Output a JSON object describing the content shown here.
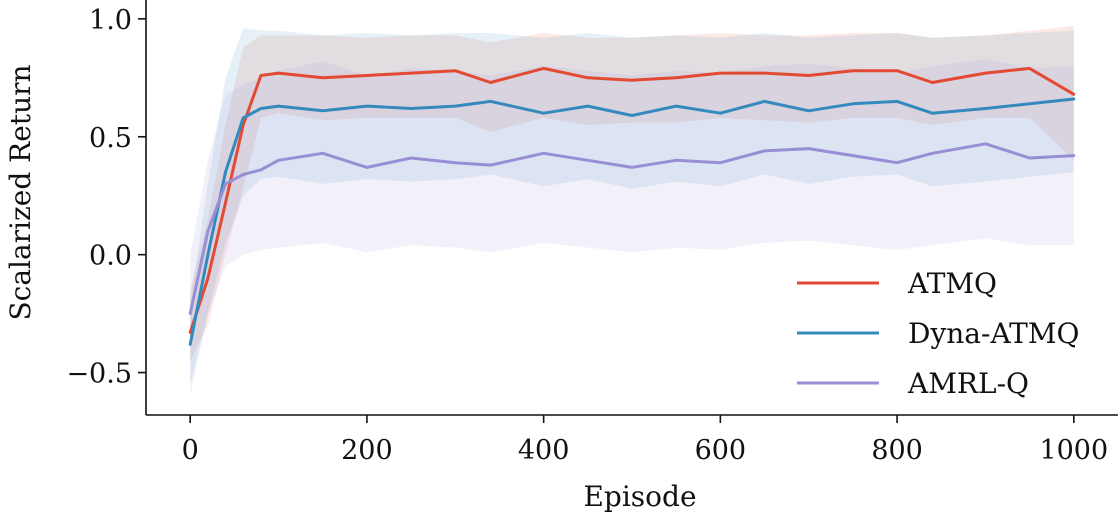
{
  "chart_data": {
    "type": "line",
    "xlabel": "Episode",
    "ylabel": "Scalarized Return",
    "xlim": [
      -50,
      1050
    ],
    "ylim": [
      -0.68,
      1.08
    ],
    "xticks": [
      0,
      200,
      400,
      600,
      800,
      1000
    ],
    "xtick_labels": [
      "0",
      "200",
      "400",
      "600",
      "800",
      "1000"
    ],
    "yticks": [
      -0.5,
      0.0,
      0.5,
      1.0
    ],
    "ytick_labels": [
      "−0.5",
      "0.0",
      "0.5",
      "1.0"
    ],
    "grid": false,
    "legend_position": "bottom-right",
    "series": [
      {
        "name": "ATMQ",
        "color": "#e24a33",
        "x": [
          0,
          20,
          40,
          60,
          80,
          100,
          150,
          200,
          250,
          300,
          340,
          400,
          450,
          500,
          550,
          600,
          650,
          700,
          750,
          800,
          840,
          900,
          950,
          1000
        ],
        "y": [
          -0.33,
          -0.1,
          0.22,
          0.55,
          0.76,
          0.77,
          0.75,
          0.76,
          0.77,
          0.78,
          0.73,
          0.79,
          0.75,
          0.74,
          0.75,
          0.77,
          0.77,
          0.76,
          0.78,
          0.78,
          0.73,
          0.77,
          0.79,
          0.68
        ],
        "band_upper": [
          -0.15,
          0.15,
          0.55,
          0.88,
          0.93,
          0.93,
          0.93,
          0.92,
          0.93,
          0.93,
          0.9,
          0.94,
          0.92,
          0.92,
          0.93,
          0.94,
          0.93,
          0.93,
          0.94,
          0.94,
          0.92,
          0.93,
          0.95,
          0.97
        ],
        "band_lower": [
          -0.45,
          -0.3,
          0.0,
          0.28,
          0.58,
          0.6,
          0.57,
          0.58,
          0.58,
          0.58,
          0.52,
          0.58,
          0.55,
          0.56,
          0.56,
          0.58,
          0.57,
          0.56,
          0.58,
          0.58,
          0.55,
          0.58,
          0.58,
          0.4
        ]
      },
      {
        "name": "Dyna-ATMQ",
        "color": "#348abd",
        "x": [
          0,
          20,
          40,
          60,
          80,
          100,
          150,
          200,
          250,
          300,
          340,
          400,
          450,
          500,
          550,
          600,
          650,
          700,
          750,
          800,
          840,
          900,
          950,
          1000
        ],
        "y": [
          -0.38,
          0.0,
          0.35,
          0.58,
          0.62,
          0.63,
          0.61,
          0.63,
          0.62,
          0.63,
          0.65,
          0.6,
          0.63,
          0.59,
          0.63,
          0.6,
          0.65,
          0.61,
          0.64,
          0.65,
          0.6,
          0.62,
          0.64,
          0.66
        ],
        "band_upper": [
          -0.2,
          0.3,
          0.75,
          0.96,
          0.95,
          0.95,
          0.93,
          0.94,
          0.93,
          0.94,
          0.94,
          0.92,
          0.94,
          0.92,
          0.93,
          0.92,
          0.94,
          0.92,
          0.93,
          0.94,
          0.92,
          0.93,
          0.94,
          0.95
        ],
        "band_lower": [
          -0.55,
          -0.25,
          0.05,
          0.25,
          0.32,
          0.33,
          0.3,
          0.32,
          0.31,
          0.32,
          0.34,
          0.29,
          0.32,
          0.28,
          0.31,
          0.29,
          0.34,
          0.3,
          0.33,
          0.34,
          0.29,
          0.31,
          0.33,
          0.35
        ]
      },
      {
        "name": "AMRL-Q",
        "color": "#988ed5",
        "x": [
          0,
          20,
          40,
          60,
          80,
          100,
          150,
          200,
          250,
          300,
          340,
          400,
          450,
          500,
          550,
          600,
          650,
          700,
          750,
          800,
          840,
          900,
          950,
          1000
        ],
        "y": [
          -0.25,
          0.1,
          0.3,
          0.34,
          0.36,
          0.4,
          0.43,
          0.37,
          0.41,
          0.39,
          0.38,
          0.43,
          0.4,
          0.37,
          0.4,
          0.39,
          0.44,
          0.45,
          0.42,
          0.39,
          0.43,
          0.47,
          0.41,
          0.42
        ],
        "band_upper": [
          0.0,
          0.4,
          0.68,
          0.72,
          0.75,
          0.78,
          0.82,
          0.76,
          0.79,
          0.78,
          0.76,
          0.8,
          0.78,
          0.76,
          0.78,
          0.77,
          0.8,
          0.81,
          0.79,
          0.77,
          0.8,
          0.83,
          0.79,
          0.8
        ],
        "band_lower": [
          -0.6,
          -0.25,
          -0.05,
          0.0,
          0.02,
          0.03,
          0.05,
          0.01,
          0.04,
          0.03,
          0.01,
          0.05,
          0.03,
          0.01,
          0.03,
          0.02,
          0.05,
          0.06,
          0.04,
          0.02,
          0.04,
          0.07,
          0.04,
          0.04
        ]
      }
    ]
  }
}
